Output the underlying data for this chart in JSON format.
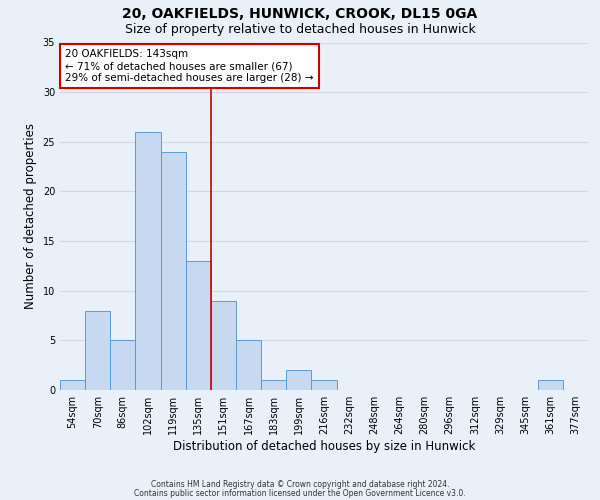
{
  "title": "20, OAKFIELDS, HUNWICK, CROOK, DL15 0GA",
  "subtitle": "Size of property relative to detached houses in Hunwick",
  "xlabel": "Distribution of detached houses by size in Hunwick",
  "ylabel": "Number of detached properties",
  "footnote1": "Contains HM Land Registry data © Crown copyright and database right 2024.",
  "footnote2": "Contains public sector information licensed under the Open Government Licence v3.0.",
  "bin_labels": [
    "54sqm",
    "70sqm",
    "86sqm",
    "102sqm",
    "119sqm",
    "135sqm",
    "151sqm",
    "167sqm",
    "183sqm",
    "199sqm",
    "216sqm",
    "232sqm",
    "248sqm",
    "264sqm",
    "280sqm",
    "296sqm",
    "312sqm",
    "329sqm",
    "345sqm",
    "361sqm",
    "377sqm"
  ],
  "bar_heights": [
    1,
    8,
    5,
    26,
    24,
    13,
    9,
    5,
    1,
    2,
    1,
    0,
    0,
    0,
    0,
    0,
    0,
    0,
    0,
    1,
    0
  ],
  "bar_color": "#c6d9f0",
  "bar_edge_color": "#5b9bd5",
  "grid_color": "#d0d8e8",
  "background_color": "#eaf0f8",
  "vline_x_index": 5.5,
  "vline_color": "#cc0000",
  "annotation_text": "20 OAKFIELDS: 143sqm\n← 71% of detached houses are smaller (67)\n29% of semi-detached houses are larger (28) →",
  "annotation_box_color": "#ffffff",
  "annotation_box_edge": "#cc0000",
  "ylim": [
    0,
    35
  ],
  "yticks": [
    0,
    5,
    10,
    15,
    20,
    25,
    30,
    35
  ],
  "title_fontsize": 10,
  "subtitle_fontsize": 9,
  "tick_fontsize": 7,
  "ylabel_fontsize": 8.5,
  "xlabel_fontsize": 8.5,
  "annotation_fontsize": 7.5,
  "footnote_fontsize": 5.5
}
